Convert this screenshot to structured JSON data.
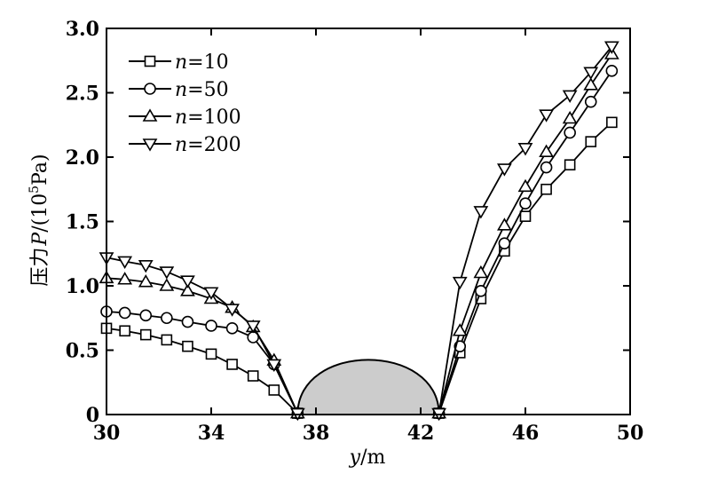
{
  "chart_data": {
    "type": "line",
    "xlabel_var": "y",
    "xlabel_unit": "/m",
    "ylabel_prefix": "压力",
    "ylabel_var": "P",
    "ylabel_unit_a": "/(10",
    "ylabel_unit_sup": "5",
    "ylabel_unit_b": "Pa)",
    "xlim": [
      30,
      50
    ],
    "ylim": [
      0,
      3.0
    ],
    "xticks": [
      30,
      34,
      38,
      42,
      46,
      50
    ],
    "xtick_labels": [
      "30",
      "34",
      "38",
      "42",
      "46",
      "50"
    ],
    "yticks": [
      0,
      0.5,
      1.0,
      1.5,
      2.0,
      2.5,
      3.0
    ],
    "ytick_labels": [
      "0",
      "0.5",
      "1.0",
      "1.5",
      "2.0",
      "2.5",
      "3.0"
    ],
    "grid": false,
    "legend_position": "top-left",
    "obstacle": {
      "x_start": 37.3,
      "x_end": 42.7,
      "peak": 0.52,
      "color": "#cccccc"
    },
    "series": [
      {
        "name": "10",
        "legend_var": "n",
        "legend_eq": "=",
        "marker": "square",
        "left": [
          [
            30.0,
            0.67
          ],
          [
            30.7,
            0.65
          ],
          [
            31.5,
            0.62
          ],
          [
            32.3,
            0.58
          ],
          [
            33.1,
            0.53
          ],
          [
            34.0,
            0.47
          ],
          [
            34.8,
            0.39
          ],
          [
            35.6,
            0.3
          ],
          [
            36.4,
            0.19
          ],
          [
            37.3,
            0.01
          ]
        ],
        "right": [
          [
            42.7,
            0.01
          ],
          [
            43.5,
            0.48
          ],
          [
            44.3,
            0.9
          ],
          [
            45.2,
            1.27
          ],
          [
            46.0,
            1.54
          ],
          [
            46.8,
            1.75
          ],
          [
            47.7,
            1.94
          ],
          [
            48.5,
            2.12
          ],
          [
            49.3,
            2.27
          ]
        ]
      },
      {
        "name": "50",
        "legend_var": "n",
        "legend_eq": "=",
        "marker": "circle",
        "left": [
          [
            30.0,
            0.8
          ],
          [
            30.7,
            0.79
          ],
          [
            31.5,
            0.77
          ],
          [
            32.3,
            0.75
          ],
          [
            33.1,
            0.72
          ],
          [
            34.0,
            0.69
          ],
          [
            34.8,
            0.67
          ],
          [
            35.6,
            0.6
          ],
          [
            36.4,
            0.39
          ],
          [
            37.3,
            0.01
          ]
        ],
        "right": [
          [
            42.7,
            0.01
          ],
          [
            43.5,
            0.53
          ],
          [
            44.3,
            0.96
          ],
          [
            45.2,
            1.33
          ],
          [
            46.0,
            1.64
          ],
          [
            46.8,
            1.92
          ],
          [
            47.7,
            2.19
          ],
          [
            48.5,
            2.43
          ],
          [
            49.3,
            2.67
          ]
        ]
      },
      {
        "name": "100",
        "legend_var": "n",
        "legend_eq": "=",
        "marker": "triangle-up",
        "left": [
          [
            30.0,
            1.06
          ],
          [
            30.7,
            1.05
          ],
          [
            31.5,
            1.03
          ],
          [
            32.3,
            1.0
          ],
          [
            33.1,
            0.96
          ],
          [
            34.0,
            0.9
          ],
          [
            34.8,
            0.83
          ],
          [
            35.6,
            0.68
          ],
          [
            36.4,
            0.42
          ],
          [
            37.3,
            0.01
          ]
        ],
        "right": [
          [
            42.7,
            0.01
          ],
          [
            43.5,
            0.65
          ],
          [
            44.3,
            1.1
          ],
          [
            45.2,
            1.47
          ],
          [
            46.0,
            1.77
          ],
          [
            46.8,
            2.04
          ],
          [
            47.7,
            2.3
          ],
          [
            48.5,
            2.56
          ],
          [
            49.3,
            2.8
          ]
        ]
      },
      {
        "name": "200",
        "legend_var": "n",
        "legend_eq": "=",
        "marker": "triangle-down",
        "left": [
          [
            30.0,
            1.22
          ],
          [
            30.7,
            1.19
          ],
          [
            31.5,
            1.16
          ],
          [
            32.3,
            1.11
          ],
          [
            33.1,
            1.04
          ],
          [
            34.0,
            0.95
          ],
          [
            34.8,
            0.82
          ],
          [
            35.6,
            0.69
          ],
          [
            36.4,
            0.39
          ],
          [
            37.3,
            0.01
          ]
        ],
        "right": [
          [
            42.7,
            0.01
          ],
          [
            43.5,
            1.03
          ],
          [
            44.3,
            1.58
          ],
          [
            45.2,
            1.91
          ],
          [
            46.0,
            2.07
          ],
          [
            46.8,
            2.33
          ],
          [
            47.7,
            2.48
          ],
          [
            48.5,
            2.66
          ],
          [
            49.3,
            2.86
          ]
        ]
      }
    ]
  }
}
